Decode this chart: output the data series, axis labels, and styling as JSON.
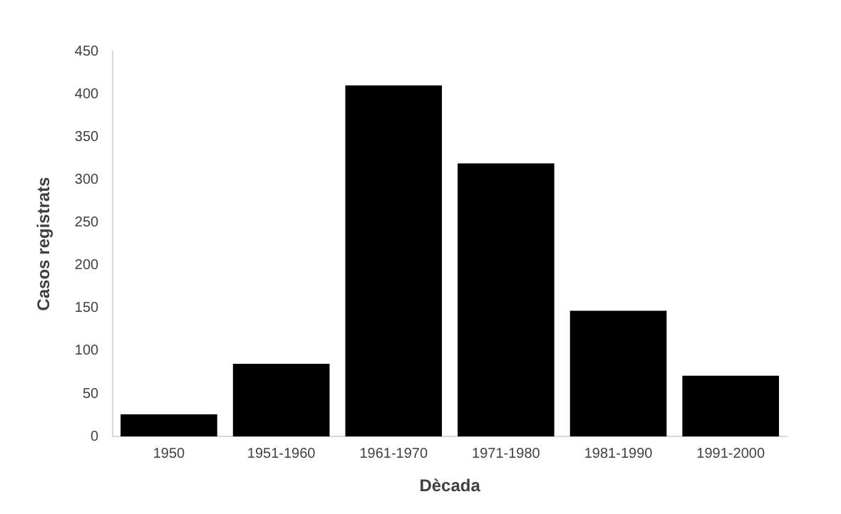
{
  "chart_data": {
    "type": "bar",
    "xlabel": "Dècada",
    "ylabel": "Casos registrats",
    "categories": [
      "1950",
      "1951-1960",
      "1961-1970",
      "1971-1980",
      "1981-1990",
      "1991-2000"
    ],
    "values": [
      26,
      85,
      410,
      319,
      147,
      71
    ],
    "color": "#000000",
    "ylim": [
      0,
      450
    ],
    "yticks": [
      0,
      50,
      100,
      150,
      200,
      250,
      300,
      350,
      400,
      450
    ],
    "grid": false,
    "legend": false
  }
}
